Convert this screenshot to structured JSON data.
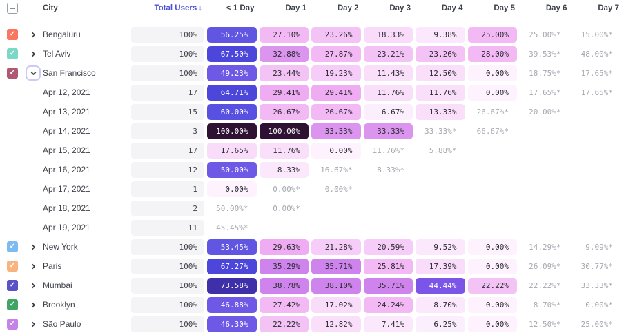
{
  "colors": {
    "accent": "#4A4FD6",
    "header_text": "#3F434A",
    "pill_gray_bg": "#F4F4F6",
    "partial_text": "#A5A8AF",
    "cell_dark_text": "#2A2C30",
    "cell_light_text": "#FFFFFF",
    "focus_ring": "#CFC9F6",
    "checkbox_border": "#9AA0A8"
  },
  "heat_scale": [
    {
      "min": 100,
      "bg": "#2E1133",
      "fg": "#FFFFFF"
    },
    {
      "min": 70,
      "bg": "#3F2FA9",
      "fg": "#FFFFFF"
    },
    {
      "min": 63,
      "bg": "#4C46DB",
      "fg": "#FFFFFF"
    },
    {
      "min": 58,
      "bg": "#5850E0",
      "fg": "#FFFFFF"
    },
    {
      "min": 52,
      "bg": "#6156E2",
      "fg": "#FFFFFF"
    },
    {
      "min": 45,
      "bg": "#6E58E6",
      "fg": "#FFFFFF"
    },
    {
      "min": 42,
      "bg": "#7A55E8",
      "fg": "#FFFFFF"
    },
    {
      "min": 34,
      "bg": "#CE84EC",
      "fg": "#2A2C30"
    },
    {
      "min": 31,
      "bg": "#DC95EE",
      "fg": "#2A2C30"
    },
    {
      "min": 28.5,
      "bg": "#EFACF3",
      "fg": "#2A2C30"
    },
    {
      "min": 24,
      "bg": "#F2B9F4",
      "fg": "#2A2C30"
    },
    {
      "min": 22,
      "bg": "#F4C3F6",
      "fg": "#2A2C30"
    },
    {
      "min": 19,
      "bg": "#F6CDF8",
      "fg": "#2A2C30"
    },
    {
      "min": 14,
      "bg": "#F8DCFA",
      "fg": "#2A2C30"
    },
    {
      "min": 10,
      "bg": "#FADFFB",
      "fg": "#2A2C30"
    },
    {
      "min": 7,
      "bg": "#FBE8FC",
      "fg": "#2A2C30"
    },
    {
      "min": 0.01,
      "bg": "#FCEFFD",
      "fg": "#2A2C30"
    },
    {
      "min": 0,
      "bg": "#FDF2FE",
      "fg": "#2A2C30"
    }
  ],
  "table": {
    "columns": {
      "city": "City",
      "total_users": "Total Users",
      "sort_arrow": "↓",
      "days": [
        "< 1 Day",
        "Day 1",
        "Day 2",
        "Day 3",
        "Day 4",
        "Day 5",
        "Day 6",
        "Day 7"
      ]
    },
    "select_all_state": "indeterminate",
    "rows": [
      {
        "kind": "city",
        "label": "Bengaluru",
        "checkbox_color": "#F8775E",
        "checked": true,
        "chevron": "collapsed",
        "chevron_focused": false,
        "total": "100%",
        "cells": [
          {
            "text": "56.25%",
            "value": 56.25,
            "partial": false
          },
          {
            "text": "27.10%",
            "value": 27.1,
            "partial": false
          },
          {
            "text": "23.26%",
            "value": 23.26,
            "partial": false
          },
          {
            "text": "18.33%",
            "value": 18.33,
            "partial": false
          },
          {
            "text": "9.38%",
            "value": 9.38,
            "partial": false
          },
          {
            "text": "25.00%",
            "value": 25.0,
            "partial": false
          },
          {
            "text": "25.00%*",
            "value": 25.0,
            "partial": true
          },
          {
            "text": "15.00%*",
            "value": 15.0,
            "partial": true
          }
        ]
      },
      {
        "kind": "city",
        "label": "Tel Aviv",
        "checkbox_color": "#79D9C6",
        "checked": true,
        "chevron": "collapsed",
        "chevron_focused": false,
        "total": "100%",
        "cells": [
          {
            "text": "67.50%",
            "value": 67.5,
            "partial": false
          },
          {
            "text": "32.88%",
            "value": 32.88,
            "partial": false
          },
          {
            "text": "27.87%",
            "value": 27.87,
            "partial": false
          },
          {
            "text": "23.21%",
            "value": 23.21,
            "partial": false
          },
          {
            "text": "23.26%",
            "value": 23.26,
            "partial": false
          },
          {
            "text": "28.00%",
            "value": 28.0,
            "partial": false
          },
          {
            "text": "39.53%*",
            "value": 39.53,
            "partial": true
          },
          {
            "text": "48.00%*",
            "value": 48.0,
            "partial": true
          }
        ]
      },
      {
        "kind": "city",
        "label": "San Francisco",
        "checkbox_color": "#B05873",
        "checked": true,
        "chevron": "expanded",
        "chevron_focused": true,
        "total": "100%",
        "cells": [
          {
            "text": "49.23%",
            "value": 49.23,
            "partial": false
          },
          {
            "text": "23.44%",
            "value": 23.44,
            "partial": false
          },
          {
            "text": "19.23%",
            "value": 19.23,
            "partial": false
          },
          {
            "text": "11.43%",
            "value": 11.43,
            "partial": false
          },
          {
            "text": "12.50%",
            "value": 12.5,
            "partial": false
          },
          {
            "text": "0.00%",
            "value": 0.0,
            "partial": false
          },
          {
            "text": "18.75%*",
            "value": 18.75,
            "partial": true
          },
          {
            "text": "17.65%*",
            "value": 17.65,
            "partial": true
          }
        ]
      },
      {
        "kind": "date",
        "label": "Apr 12, 2021",
        "total": "17",
        "cells": [
          {
            "text": "64.71%",
            "value": 64.71,
            "partial": false
          },
          {
            "text": "29.41%",
            "value": 29.41,
            "partial": false
          },
          {
            "text": "29.41%",
            "value": 29.41,
            "partial": false
          },
          {
            "text": "11.76%",
            "value": 11.76,
            "partial": false
          },
          {
            "text": "11.76%",
            "value": 11.76,
            "partial": false
          },
          {
            "text": "0.00%",
            "value": 0.0,
            "partial": false
          },
          {
            "text": "17.65%*",
            "value": 17.65,
            "partial": true
          },
          {
            "text": "17.65%*",
            "value": 17.65,
            "partial": true
          }
        ]
      },
      {
        "kind": "date",
        "label": "Apr 13, 2021",
        "total": "15",
        "cells": [
          {
            "text": "60.00%",
            "value": 60.0,
            "partial": false
          },
          {
            "text": "26.67%",
            "value": 26.67,
            "partial": false
          },
          {
            "text": "26.67%",
            "value": 26.67,
            "partial": false
          },
          {
            "text": "6.67%",
            "value": 6.67,
            "partial": false
          },
          {
            "text": "13.33%",
            "value": 13.33,
            "partial": false
          },
          {
            "text": "26.67%*",
            "value": 26.67,
            "partial": true
          },
          {
            "text": "20.00%*",
            "value": 20.0,
            "partial": true
          },
          null
        ]
      },
      {
        "kind": "date",
        "label": "Apr 14, 2021",
        "total": "3",
        "cells": [
          {
            "text": "100.00%",
            "value": 100.0,
            "partial": false
          },
          {
            "text": "100.00%",
            "value": 100.0,
            "partial": false
          },
          {
            "text": "33.33%",
            "value": 33.33,
            "partial": false
          },
          {
            "text": "33.33%",
            "value": 33.33,
            "partial": false
          },
          {
            "text": "33.33%*",
            "value": 33.33,
            "partial": true
          },
          {
            "text": "66.67%*",
            "value": 66.67,
            "partial": true
          },
          null,
          null
        ]
      },
      {
        "kind": "date",
        "label": "Apr 15, 2021",
        "total": "17",
        "cells": [
          {
            "text": "17.65%",
            "value": 17.65,
            "partial": false
          },
          {
            "text": "11.76%",
            "value": 11.76,
            "partial": false
          },
          {
            "text": "0.00%",
            "value": 0.0,
            "partial": false
          },
          {
            "text": "11.76%*",
            "value": 11.76,
            "partial": true
          },
          {
            "text": "5.88%*",
            "value": 5.88,
            "partial": true
          },
          null,
          null,
          null
        ]
      },
      {
        "kind": "date",
        "label": "Apr 16, 2021",
        "total": "12",
        "cells": [
          {
            "text": "50.00%",
            "value": 50.0,
            "partial": false
          },
          {
            "text": "8.33%",
            "value": 8.33,
            "partial": false
          },
          {
            "text": "16.67%*",
            "value": 16.67,
            "partial": true
          },
          {
            "text": "8.33%*",
            "value": 8.33,
            "partial": true
          },
          null,
          null,
          null,
          null
        ]
      },
      {
        "kind": "date",
        "label": "Apr 17, 2021",
        "total": "1",
        "cells": [
          {
            "text": "0.00%",
            "value": 0.0,
            "partial": false
          },
          {
            "text": "0.00%*",
            "value": 0.0,
            "partial": true
          },
          {
            "text": "0.00%*",
            "value": 0.0,
            "partial": true
          },
          null,
          null,
          null,
          null,
          null
        ]
      },
      {
        "kind": "date",
        "label": "Apr 18, 2021",
        "total": "2",
        "cells": [
          {
            "text": "50.00%*",
            "value": 50.0,
            "partial": true
          },
          {
            "text": "0.00%*",
            "value": 0.0,
            "partial": true
          },
          null,
          null,
          null,
          null,
          null,
          null
        ]
      },
      {
        "kind": "date",
        "label": "Apr 19, 2021",
        "total": "11",
        "cells": [
          {
            "text": "45.45%*",
            "value": 45.45,
            "partial": true
          },
          null,
          null,
          null,
          null,
          null,
          null,
          null
        ]
      },
      {
        "kind": "city",
        "label": "New York",
        "checkbox_color": "#7CBCF2",
        "checked": true,
        "chevron": "collapsed",
        "chevron_focused": false,
        "total": "100%",
        "cells": [
          {
            "text": "53.45%",
            "value": 53.45,
            "partial": false
          },
          {
            "text": "29.63%",
            "value": 29.63,
            "partial": false
          },
          {
            "text": "21.28%",
            "value": 21.28,
            "partial": false
          },
          {
            "text": "20.59%",
            "value": 20.59,
            "partial": false
          },
          {
            "text": "9.52%",
            "value": 9.52,
            "partial": false
          },
          {
            "text": "0.00%",
            "value": 0.0,
            "partial": false
          },
          {
            "text": "14.29%*",
            "value": 14.29,
            "partial": true
          },
          {
            "text": "9.09%*",
            "value": 9.09,
            "partial": true
          }
        ]
      },
      {
        "kind": "city",
        "label": "Paris",
        "checkbox_color": "#F9B37E",
        "checked": true,
        "chevron": "collapsed",
        "chevron_focused": false,
        "total": "100%",
        "cells": [
          {
            "text": "67.27%",
            "value": 67.27,
            "partial": false
          },
          {
            "text": "35.29%",
            "value": 35.29,
            "partial": false
          },
          {
            "text": "35.71%",
            "value": 35.71,
            "partial": false
          },
          {
            "text": "25.81%",
            "value": 25.81,
            "partial": false
          },
          {
            "text": "17.39%",
            "value": 17.39,
            "partial": false
          },
          {
            "text": "0.00%",
            "value": 0.0,
            "partial": false
          },
          {
            "text": "26.09%*",
            "value": 26.09,
            "partial": true
          },
          {
            "text": "30.77%*",
            "value": 30.77,
            "partial": true
          }
        ]
      },
      {
        "kind": "city",
        "label": "Mumbai",
        "checkbox_color": "#5B52C7",
        "checked": true,
        "chevron": "collapsed",
        "chevron_focused": false,
        "total": "100%",
        "cells": [
          {
            "text": "73.58%",
            "value": 73.58,
            "partial": false
          },
          {
            "text": "38.78%",
            "value": 38.78,
            "partial": false
          },
          {
            "text": "38.10%",
            "value": 38.1,
            "partial": false
          },
          {
            "text": "35.71%",
            "value": 35.71,
            "partial": false
          },
          {
            "text": "44.44%",
            "value": 44.44,
            "partial": false
          },
          {
            "text": "22.22%",
            "value": 22.22,
            "partial": false
          },
          {
            "text": "22.22%*",
            "value": 22.22,
            "partial": true
          },
          {
            "text": "33.33%*",
            "value": 33.33,
            "partial": true
          }
        ]
      },
      {
        "kind": "city",
        "label": "Brooklyn",
        "checkbox_color": "#3EA564",
        "checked": true,
        "chevron": "collapsed",
        "chevron_focused": false,
        "total": "100%",
        "cells": [
          {
            "text": "46.88%",
            "value": 46.88,
            "partial": false
          },
          {
            "text": "27.42%",
            "value": 27.42,
            "partial": false
          },
          {
            "text": "17.02%",
            "value": 17.02,
            "partial": false
          },
          {
            "text": "24.24%",
            "value": 24.24,
            "partial": false
          },
          {
            "text": "8.70%",
            "value": 8.7,
            "partial": false
          },
          {
            "text": "0.00%",
            "value": 0.0,
            "partial": false
          },
          {
            "text": "8.70%*",
            "value": 8.7,
            "partial": true
          },
          {
            "text": "0.00%*",
            "value": 0.0,
            "partial": true
          }
        ]
      },
      {
        "kind": "city",
        "label": "São Paulo",
        "checkbox_color": "#C583E8",
        "checked": true,
        "chevron": "collapsed",
        "chevron_focused": false,
        "total": "100%",
        "cells": [
          {
            "text": "46.30%",
            "value": 46.3,
            "partial": false
          },
          {
            "text": "22.22%",
            "value": 22.22,
            "partial": false
          },
          {
            "text": "12.82%",
            "value": 12.82,
            "partial": false
          },
          {
            "text": "7.41%",
            "value": 7.41,
            "partial": false
          },
          {
            "text": "6.25%",
            "value": 6.25,
            "partial": false
          },
          {
            "text": "0.00%",
            "value": 0.0,
            "partial": false
          },
          {
            "text": "12.50%*",
            "value": 12.5,
            "partial": true
          },
          {
            "text": "25.00%*",
            "value": 25.0,
            "partial": true
          }
        ]
      }
    ]
  }
}
